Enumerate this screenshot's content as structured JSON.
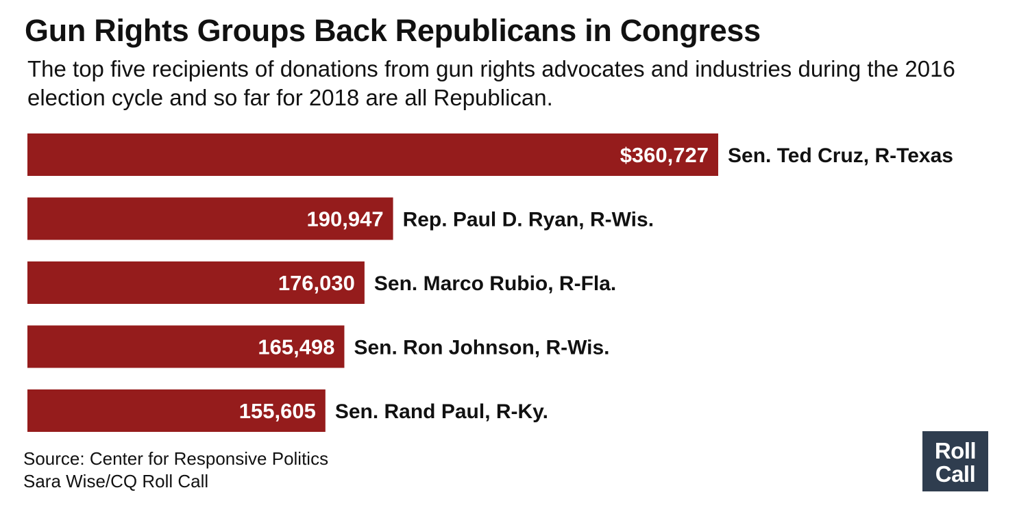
{
  "header": {
    "title": "Gun Rights Groups Back Republicans in Congress",
    "subtitle": "The top five recipients of donations from gun rights advocates and industries during the 2016 election cycle and so far for 2018 are all Republican."
  },
  "chart_data": {
    "type": "bar",
    "orientation": "horizontal",
    "title": "Gun Rights Groups Back Republicans in Congress",
    "xlabel": "",
    "ylabel": "",
    "categories": [
      "Sen. Ted Cruz, R-Texas",
      "Rep. Paul D. Ryan, R-Wis.",
      "Sen. Marco Rubio, R-Fla.",
      "Sen. Ron Johnson, R-Wis.",
      "Sen. Rand Paul, R-Ky."
    ],
    "values": [
      360727,
      190947,
      176030,
      165498,
      155605
    ],
    "value_labels": [
      "$360,727",
      "190,947",
      "176,030",
      "165,498",
      "155,605"
    ],
    "xlim": [
      0,
      360727
    ],
    "grid": false,
    "legend": "none",
    "bar_color": "#951c1c"
  },
  "footer": {
    "source": "Source: Center for Responsive Politics",
    "credit": "Sara Wise/CQ Roll Call"
  },
  "logo": {
    "line1": "Roll",
    "line2": "Call",
    "background": "#2f3d4f"
  }
}
